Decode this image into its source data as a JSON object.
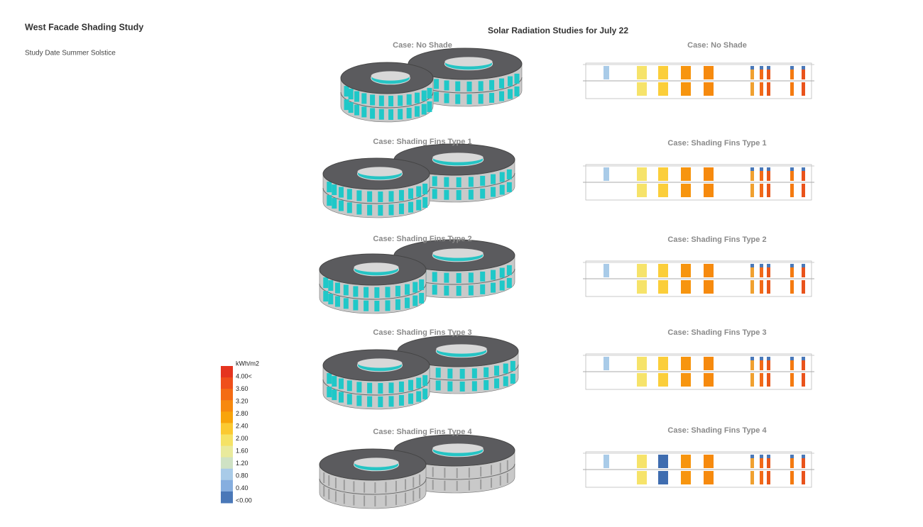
{
  "header": {
    "title": "West Facade Shading Study",
    "subtitle": "Study Date Summer Solstice"
  },
  "main_title": "Solar Radiation Studies for July 22",
  "cases": [
    {
      "label": "Case: No Shade"
    },
    {
      "label": "Case: Shading Fins Type 1"
    },
    {
      "label": "Case: Shading Fins Type 2"
    },
    {
      "label": "Case: Shading Fins Type 3"
    },
    {
      "label": "Case: Shading Fins Type 4"
    }
  ],
  "legend": {
    "unit": "kWh/m2",
    "labels": [
      "4.00<",
      "3.60",
      "3.20",
      "2.80",
      "2.40",
      "2.00",
      "1.60",
      "1.20",
      "0.80",
      "0.40",
      "<0.00"
    ],
    "colors": [
      "#e5341f",
      "#ef4f1b",
      "#f46c14",
      "#f7890e",
      "#f8a40b",
      "#fbc931",
      "#f5e265",
      "#e9ea9c",
      "#cfe2c4",
      "#a9cbe8",
      "#86aedf",
      "#4a78b8"
    ]
  }
}
